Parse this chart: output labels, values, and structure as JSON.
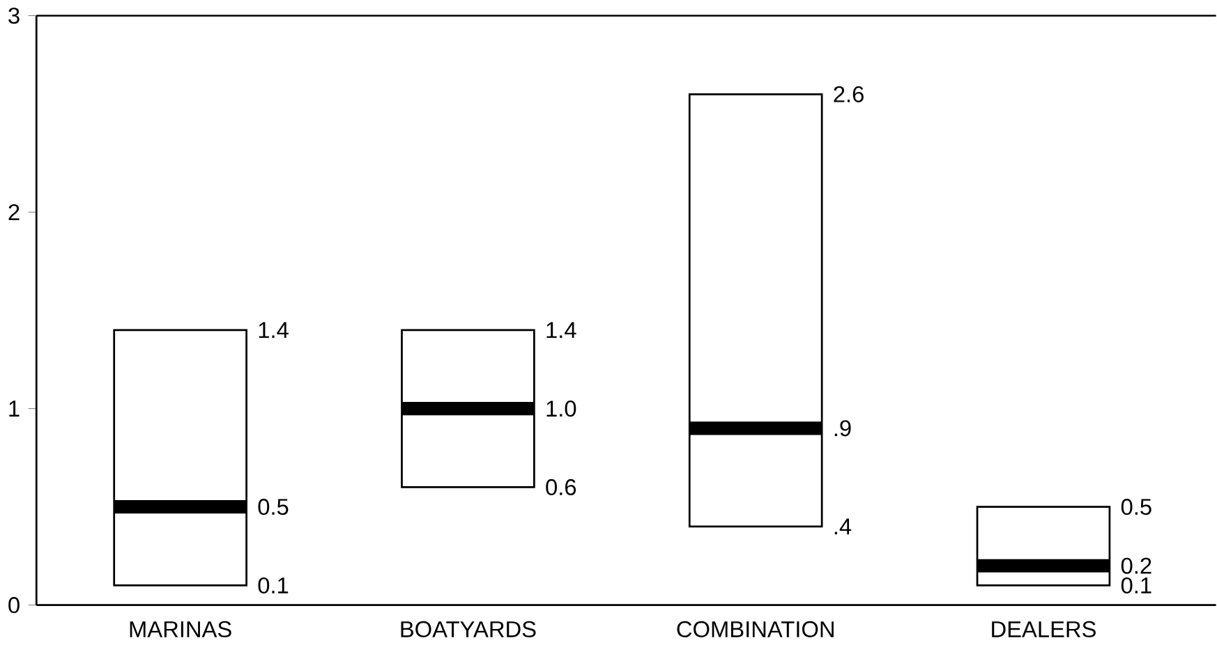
{
  "chart_data": {
    "type": "box",
    "categories": [
      "MARINAS",
      "BOATYARDS",
      "COMBINATION",
      "DEALERS"
    ],
    "boxes": [
      {
        "low": 0.1,
        "q1": 0.1,
        "median": 0.5,
        "q3": 1.4,
        "high": 1.4
      },
      {
        "low": 0.6,
        "q1": 0.6,
        "median": 1.0,
        "q3": 1.4,
        "high": 1.4
      },
      {
        "low": 0.4,
        "q1": 0.4,
        "median": 0.9,
        "q3": 2.6,
        "high": 2.6
      },
      {
        "low": 0.1,
        "q1": 0.1,
        "median": 0.2,
        "q3": 0.5,
        "high": 0.5
      }
    ],
    "ylim": [
      0,
      3
    ],
    "yticks": [
      0,
      1,
      2,
      3
    ],
    "grid": false,
    "annotations": [
      "1.4",
      "0.5",
      "0.1",
      "1.4",
      "1.0",
      "0.6",
      "2.6",
      ".9",
      ".4",
      "0.5",
      "0.2",
      "0.1"
    ]
  }
}
